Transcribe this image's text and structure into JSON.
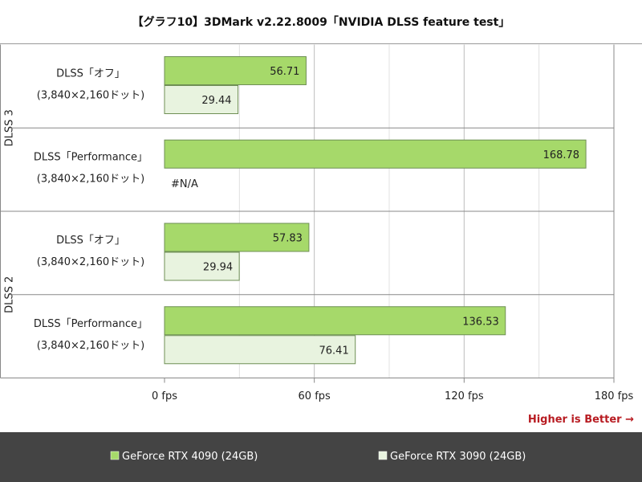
{
  "title": "【グラフ10】3DMark v2.22.8009「NVIDIA DLSS feature test」",
  "note": "Higher is Better →",
  "colors": {
    "rtx4090_fill": "#a6d96a",
    "rtx3090_fill": "#e8f3df",
    "bar_stroke": "#6f8f55",
    "footer_bg": "#444444",
    "grid": "#cfcfcf",
    "note": "#b81c22"
  },
  "chart_data": {
    "type": "bar",
    "orientation": "horizontal",
    "title": "【グラフ10】3DMark v2.22.8009「NVIDIA DLSS feature test」",
    "x_unit": "fps",
    "xlim": [
      0,
      180
    ],
    "ticks": [
      0,
      60,
      120,
      180
    ],
    "tick_labels": [
      "0 fps",
      "60 fps",
      "120 fps",
      "180 fps"
    ],
    "grid": true,
    "legend_position": "bottom",
    "groups": [
      {
        "label": "DLSS 3",
        "rows": [
          {
            "label_line1": "DLSS「オフ」",
            "label_line2": "(3,840×2,160ドット)"
          },
          {
            "label_line1": "DLSS「Performance」",
            "label_line2": "(3,840×2,160ドット)"
          }
        ]
      },
      {
        "label": "DLSS 2",
        "rows": [
          {
            "label_line1": "DLSS「オフ」",
            "label_line2": "(3,840×2,160ドット)"
          },
          {
            "label_line1": "DLSS「Performance」",
            "label_line2": "(3,840×2,160ドット)"
          }
        ]
      }
    ],
    "series": [
      {
        "name": "GeForce RTX 4090 (24GB)",
        "values": [
          56.71,
          168.78,
          57.83,
          136.53
        ],
        "labels": [
          "56.71",
          "168.78",
          "57.83",
          "136.53"
        ]
      },
      {
        "name": "GeForce RTX 3090 (24GB)",
        "values": [
          29.44,
          null,
          29.94,
          76.41
        ],
        "labels": [
          "29.44",
          "#N/A",
          "29.94",
          "76.41"
        ]
      }
    ]
  }
}
